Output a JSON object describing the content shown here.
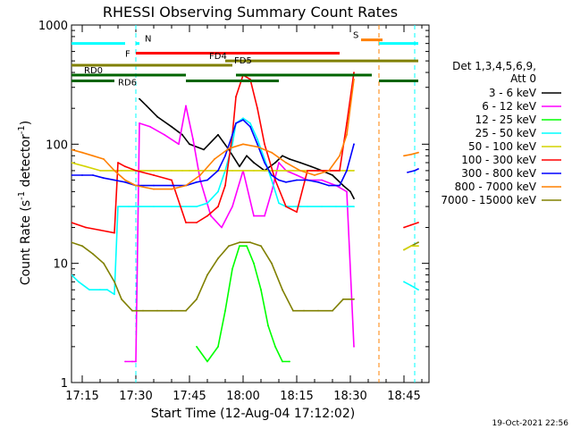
{
  "chart_data": {
    "type": "line",
    "title": "RHESSI Observing Summary Count Rates",
    "xlabel": "Start Time (12-Aug-04 17:12:02)",
    "ylabel_prefix": "Count Rate (s",
    "ylabel_exp": "-1",
    "ylabel_suffix": " detector",
    "ylabel_close": ")",
    "footer": "19-Oct-2021 22:56",
    "y_scale": "log",
    "ylim": [
      1,
      1000
    ],
    "xlim": [
      "17:12",
      "18:52"
    ],
    "x_ticks": [
      "17:15",
      "17:30",
      "17:45",
      "18:00",
      "18:15",
      "18:30",
      "18:45"
    ],
    "y_ticks": [
      "1",
      "10",
      "100",
      "1000"
    ],
    "legend": {
      "header": [
        "Det 1,3,4,5,6,9,",
        "Att 0"
      ],
      "placement": "right",
      "entries": [
        {
          "label": "3 - 6 keV",
          "color": "#000000"
        },
        {
          "label": "6 - 12 keV",
          "color": "#ff00ff"
        },
        {
          "label": "12 - 25 keV",
          "color": "#00ff00"
        },
        {
          "label": "25 - 50 keV",
          "color": "#00ffff"
        },
        {
          "label": "50 - 100 keV",
          "color": "#d4d400"
        },
        {
          "label": "100 - 300 keV",
          "color": "#ff0000"
        },
        {
          "label": "300 - 800 keV",
          "color": "#0000ff"
        },
        {
          "label": "800 - 7000 keV",
          "color": "#ff8000"
        },
        {
          "label": "7000 - 15000 keV",
          "color": "#808000"
        }
      ]
    },
    "flag_bars": [
      {
        "label": "N",
        "color": "#00ffff",
        "y": 700,
        "segments": [
          [
            "17:12",
            "17:27"
          ],
          [
            "17:30",
            "17:31"
          ],
          [
            "18:38",
            "18:49"
          ]
        ]
      },
      {
        "label": "S",
        "color": "#ff8000",
        "y": 750,
        "segments": [
          [
            "18:33",
            "18:39"
          ]
        ]
      },
      {
        "label": "F",
        "color": "#ff0000",
        "y": 580,
        "segments": [
          [
            "17:30",
            "18:27"
          ]
        ]
      },
      {
        "label": "FD4",
        "color": "#808000",
        "y": 500,
        "segments": [
          [
            "17:55",
            "18:49"
          ]
        ]
      },
      {
        "label": "FD5",
        "color": "#808000",
        "y": 460,
        "segments": [
          [
            "17:12",
            "17:57"
          ]
        ]
      },
      {
        "label": "RD0",
        "color": "#006400",
        "y": 380,
        "segments": [
          [
            "17:12",
            "17:44"
          ],
          [
            "17:58",
            "18:36"
          ]
        ]
      },
      {
        "label": "RD6",
        "color": "#006400",
        "y": 340,
        "segments": [
          [
            "17:12",
            "17:24"
          ],
          [
            "17:44",
            "18:10"
          ],
          [
            "18:38",
            "18:49"
          ]
        ]
      }
    ],
    "vertical_markers": [
      {
        "time": "17:30",
        "color": "#00ffff",
        "style": "dashed"
      },
      {
        "time": "18:38",
        "color": "#ff8000",
        "style": "dashed"
      },
      {
        "time": "18:48",
        "color": "#00ffff",
        "style": "dashed"
      }
    ],
    "data_gaps": [
      [
        "18:33",
        "18:44"
      ]
    ],
    "series": [
      {
        "name": "3 - 6 keV",
        "color": "#000000",
        "x": [
          "17:31",
          "17:33",
          "17:36",
          "17:40",
          "17:43",
          "17:45",
          "17:49",
          "17:53",
          "17:56",
          "17:59",
          "18:01",
          "18:03",
          "18:06",
          "18:09",
          "18:11",
          "18:13",
          "18:16",
          "18:19",
          "18:22",
          "18:25",
          "18:28",
          "18:30",
          "18:31"
        ],
        "y": [
          240,
          210,
          170,
          140,
          120,
          100,
          90,
          120,
          90,
          65,
          80,
          70,
          60,
          70,
          80,
          75,
          70,
          65,
          60,
          55,
          45,
          40,
          35
        ]
      },
      {
        "name": "6 - 12 keV",
        "color": "#ff00ff",
        "x": [
          "17:27",
          "17:29",
          "17:30",
          "17:31",
          "17:34",
          "17:38",
          "17:42",
          "17:44",
          "17:46",
          "17:48",
          "17:51",
          "17:54",
          "17:57",
          "18:00",
          "18:03",
          "18:06",
          "18:08",
          "18:10",
          "18:12",
          "18:15",
          "18:18",
          "18:22",
          "18:26",
          "18:29",
          "18:31"
        ],
        "y": [
          1.5,
          1.5,
          1.5,
          150,
          140,
          120,
          100,
          210,
          110,
          50,
          25,
          20,
          30,
          60,
          25,
          25,
          40,
          70,
          60,
          55,
          50,
          50,
          45,
          40,
          2
        ]
      },
      {
        "name": "12 - 25 keV",
        "color": "#00ff00",
        "x": [
          "17:47",
          "17:50",
          "17:53",
          "17:55",
          "17:57",
          "17:59",
          "18:01",
          "18:03",
          "18:05",
          "18:07",
          "18:09",
          "18:11",
          "18:13"
        ],
        "y": [
          2,
          1.5,
          2,
          4,
          9,
          14,
          14,
          10,
          6,
          3,
          2,
          1.5,
          1.5
        ]
      },
      {
        "name": "25 - 50 keV",
        "color": "#00ffff",
        "x": [
          "17:12",
          "17:14",
          "17:17",
          "17:20",
          "17:22",
          "17:24",
          "17:25",
          "17:28",
          "17:31",
          "17:35",
          "17:40",
          "17:44",
          "17:47",
          "17:50",
          "17:53",
          "17:55",
          "17:57",
          "17:58",
          "18:00",
          "18:02",
          "18:04",
          "18:06",
          "18:08",
          "18:10",
          "18:12",
          "18:14",
          "18:15",
          "18:18",
          "18:22",
          "18:26",
          "18:29",
          "18:31"
        ],
        "y": [
          8,
          7,
          6,
          6,
          6,
          5.5,
          30,
          30,
          30,
          30,
          30,
          30,
          30,
          32,
          40,
          60,
          100,
          150,
          165,
          150,
          110,
          75,
          50,
          32,
          30,
          30,
          30,
          30,
          30,
          30,
          30,
          30
        ]
      },
      {
        "name": "50 - 100 keV",
        "color": "#d4d400",
        "x": [
          "17:12",
          "17:16",
          "17:20",
          "17:23",
          "17:25",
          "17:26",
          "17:30",
          "17:35",
          "17:40",
          "17:43",
          "17:45",
          "17:48",
          "17:51",
          "17:54",
          "17:57",
          "18:00",
          "18:03",
          "18:06",
          "18:09",
          "18:12",
          "18:14",
          "18:16",
          "18:20",
          "18:24",
          "18:28",
          "18:31"
        ],
        "y": [
          70,
          65,
          60,
          60,
          60,
          60,
          60,
          60,
          60,
          60,
          60,
          60,
          60,
          60,
          60,
          60,
          60,
          60,
          60,
          60,
          60,
          60,
          60,
          60,
          60,
          60
        ]
      },
      {
        "name": "100 - 300 keV",
        "color": "#ff0000",
        "x": [
          "17:12",
          "17:16",
          "17:20",
          "17:24",
          "17:25",
          "17:27",
          "17:30",
          "17:35",
          "17:40",
          "17:44",
          "17:47",
          "17:50",
          "17:53",
          "17:55",
          "17:57",
          "17:58",
          "18:00",
          "18:02",
          "18:04",
          "18:06",
          "18:09",
          "18:12",
          "18:15",
          "18:18",
          "18:21",
          "18:24",
          "18:27",
          "18:29",
          "18:31"
        ],
        "y": [
          22,
          20,
          19,
          18,
          70,
          65,
          60,
          55,
          50,
          22,
          22,
          25,
          30,
          45,
          120,
          250,
          380,
          350,
          200,
          100,
          50,
          30,
          27,
          60,
          60,
          60,
          60,
          150,
          400
        ]
      },
      {
        "name": "300 - 800 keV",
        "color": "#0000ff",
        "x": [
          "17:12",
          "17:15",
          "17:18",
          "17:21",
          "17:24",
          "17:27",
          "17:30",
          "17:35",
          "17:40",
          "17:44",
          "17:47",
          "17:50",
          "17:53",
          "17:55",
          "17:57",
          "17:58",
          "18:00",
          "18:02",
          "18:04",
          "18:06",
          "18:08",
          "18:10",
          "18:12",
          "18:15",
          "18:18",
          "18:21",
          "18:24",
          "18:27",
          "18:29",
          "18:31"
        ],
        "y": [
          55,
          55,
          55,
          52,
          50,
          48,
          45,
          45,
          45,
          45,
          48,
          50,
          60,
          80,
          120,
          150,
          160,
          140,
          100,
          70,
          55,
          50,
          48,
          50,
          50,
          48,
          45,
          45,
          60,
          100
        ]
      },
      {
        "name": "800 - 7000 keV",
        "color": "#ff8000",
        "x": [
          "17:12",
          "17:15",
          "17:18",
          "17:21",
          "17:24",
          "17:27",
          "17:30",
          "17:35",
          "17:40",
          "17:44",
          "17:48",
          "17:52",
          "17:56",
          "18:00",
          "18:04",
          "18:08",
          "18:12",
          "18:16",
          "18:20",
          "18:24",
          "18:27",
          "18:29",
          "18:31"
        ],
        "y": [
          90,
          85,
          80,
          75,
          60,
          50,
          45,
          42,
          42,
          45,
          55,
          75,
          92,
          100,
          95,
          85,
          70,
          60,
          55,
          60,
          80,
          120,
          350
        ]
      },
      {
        "name": "7000 - 15000 keV",
        "color": "#808000",
        "x": [
          "17:12",
          "17:15",
          "17:18",
          "17:21",
          "17:24",
          "17:26",
          "17:29",
          "17:32",
          "17:36",
          "17:40",
          "17:44",
          "17:47",
          "17:50",
          "17:53",
          "17:56",
          "17:59",
          "18:02",
          "18:05",
          "18:08",
          "18:11",
          "18:14",
          "18:17",
          "18:21",
          "18:25",
          "18:28",
          "18:31"
        ],
        "y": [
          15,
          14,
          12,
          10,
          7,
          5,
          4,
          4,
          4,
          4,
          4,
          5,
          8,
          11,
          14,
          15,
          15,
          14,
          10,
          6,
          4,
          4,
          4,
          4,
          5,
          5
        ]
      }
    ],
    "after_gap_series": [
      {
        "color": "#808000",
        "x": [
          "18:45",
          "18:47",
          "18:49"
        ],
        "y": [
          13,
          14,
          15
        ]
      },
      {
        "color": "#ff0000",
        "x": [
          "18:45",
          "18:47",
          "18:49"
        ],
        "y": [
          20,
          21,
          22
        ]
      },
      {
        "color": "#0000ff",
        "x": [
          "18:46",
          "18:48",
          "18:49"
        ],
        "y": [
          58,
          60,
          62
        ]
      },
      {
        "color": "#ff8000",
        "x": [
          "18:45",
          "18:47",
          "18:49"
        ],
        "y": [
          80,
          82,
          85
        ]
      },
      {
        "color": "#00ffff",
        "x": [
          "18:45",
          "18:47",
          "18:49"
        ],
        "y": [
          7,
          6.5,
          6
        ]
      },
      {
        "color": "#d4d400",
        "x": [
          "18:45",
          "18:47",
          "18:49"
        ],
        "y": [
          13,
          14,
          14
        ]
      }
    ]
  }
}
